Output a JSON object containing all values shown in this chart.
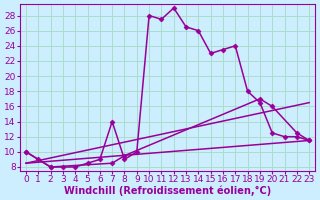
{
  "xlabel": "Windchill (Refroidissement éolien,°C)",
  "bg_color": "#cceeff",
  "grid_color": "#aaddcc",
  "line_color": "#990099",
  "xlim": [
    -0.5,
    23.5
  ],
  "ylim": [
    7.5,
    29.5
  ],
  "xticks": [
    0,
    1,
    2,
    3,
    4,
    5,
    6,
    7,
    8,
    9,
    10,
    11,
    12,
    13,
    14,
    15,
    16,
    17,
    18,
    19,
    20,
    21,
    22,
    23
  ],
  "yticks": [
    8,
    10,
    12,
    14,
    16,
    18,
    20,
    22,
    24,
    26,
    28
  ],
  "curve1_x": [
    0,
    1,
    2,
    3,
    4,
    5,
    6,
    7,
    8,
    9,
    10,
    11,
    12,
    13,
    14,
    15,
    16,
    17,
    18,
    19,
    20,
    21,
    22,
    23
  ],
  "curve1_y": [
    10,
    9,
    8,
    8,
    8,
    8.5,
    9,
    14,
    9,
    10,
    28,
    27.5,
    29,
    26.5,
    26,
    23,
    23.5,
    24,
    18,
    16.5,
    12.5,
    12,
    12,
    11.5
  ],
  "curve2_x": [
    0,
    2,
    7,
    8,
    19,
    20,
    22,
    23
  ],
  "curve2_y": [
    10,
    8,
    8.5,
    9.5,
    17,
    16,
    12.5,
    11.5
  ],
  "curve3_x": [
    0,
    23
  ],
  "curve3_y": [
    8.5,
    16.5
  ],
  "curve4_x": [
    0,
    23
  ],
  "curve4_y": [
    8.5,
    11.5
  ],
  "label_fontsize": 7,
  "tick_fontsize": 6.5,
  "linewidth": 1.1,
  "marker": "D",
  "markersize": 2.5
}
